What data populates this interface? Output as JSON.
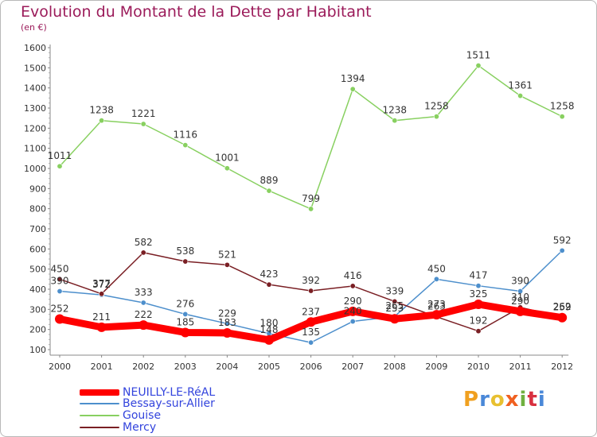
{
  "title": "Evolution du Montant de la Dette par Habitant",
  "subtitle": "(en €)",
  "logo_text": "Proxiti",
  "chart_data": {
    "type": "line",
    "title": "Evolution du Montant de la Dette par Habitant",
    "subtitle": "(en €)",
    "xlabel": "",
    "ylabel": "",
    "x": [
      "2000",
      "2001",
      "2002",
      "2003",
      "2004",
      "2005",
      "2006",
      "2007",
      "2008",
      "2009",
      "2010",
      "2011",
      "2012"
    ],
    "ylim": [
      100,
      1600
    ],
    "yticks": [
      "100",
      "200",
      "300",
      "400",
      "500",
      "600",
      "700",
      "800",
      "900",
      "1000",
      "1100",
      "1200",
      "1300",
      "1400",
      "1500",
      "1600"
    ],
    "grid": false,
    "legend_position": "bottom-left",
    "series": [
      {
        "name": "NEUILLY-LE-RéAL",
        "color": "#ff0000",
        "values": [
          252,
          211,
          222,
          185,
          183,
          148,
          237,
          290,
          253,
          273,
          325,
          290,
          259
        ],
        "labels": [
          "252",
          "211",
          "222",
          "185",
          "183",
          "148",
          "237",
          "290",
          "253",
          "273",
          "325",
          "290",
          "259"
        ]
      },
      {
        "name": "Bessay-sur-Allier",
        "color": "#4d8fcc",
        "values": [
          390,
          372,
          333,
          276,
          229,
          180,
          135,
          240,
          265,
          450,
          417,
          390,
          592
        ],
        "labels": [
          "390",
          "372",
          "333",
          "276",
          "229",
          "180",
          "135",
          "240",
          "265",
          "450",
          "417",
          "390",
          "592"
        ]
      },
      {
        "name": "Gouise",
        "color": "#88d060",
        "values": [
          1011,
          1238,
          1221,
          1116,
          1001,
          889,
          799,
          1394,
          1238,
          1258,
          1511,
          1361,
          1258
        ],
        "labels": [
          "1011",
          "1238",
          "1221",
          "1116",
          "1001",
          "889",
          "799",
          "1394",
          "1238",
          "1258",
          "1511",
          "1361",
          "1258"
        ]
      },
      {
        "name": "Mercy",
        "color": "#7a1f24",
        "values": [
          450,
          377,
          582,
          538,
          521,
          423,
          392,
          416,
          339,
          263,
          192,
          310,
          262
        ],
        "labels": [
          "450",
          "377",
          "582",
          "538",
          "521",
          "423",
          "392",
          "416",
          "339",
          "263",
          "192",
          "310",
          "262"
        ]
      }
    ]
  }
}
